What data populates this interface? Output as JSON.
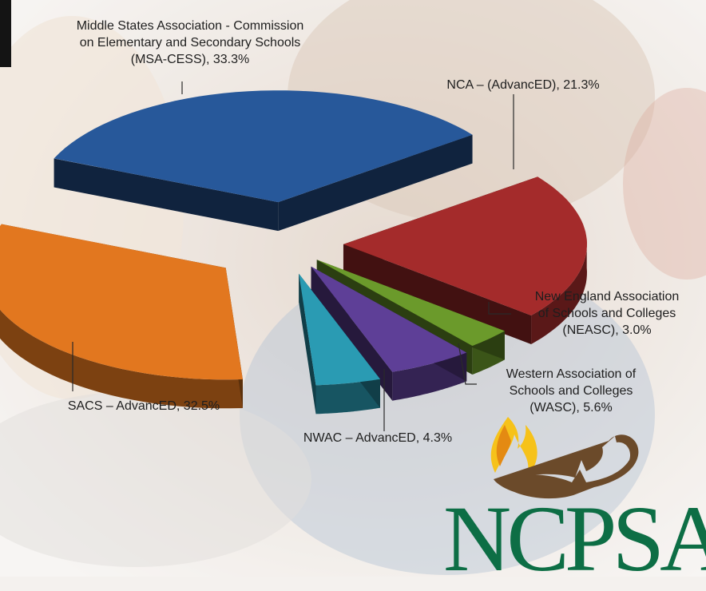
{
  "chart_data": {
    "type": "pie",
    "style": "3d-exploded",
    "slices": [
      {
        "name": "Middle States Association - Commission on Elementary and Secondary Schools (MSA-CESS)",
        "value": 33.3,
        "color": "#27589a",
        "label_lines": [
          "Middle States Association - Commission",
          "on Elementary and Secondary Schools",
          "(MSA-CESS), 33.3%"
        ]
      },
      {
        "name": "NCA – (AdvancED)",
        "value": 21.3,
        "color": "#a42b2b",
        "label_lines": [
          "NCA – (AdvancED), 21.3%"
        ]
      },
      {
        "name": "New England Association of Schools and Colleges (NEASC)",
        "value": 3.0,
        "color": "#6b9a2b",
        "label_lines": [
          "New England Association",
          "of Schools and Colleges",
          "(NEASC), 3.0%"
        ]
      },
      {
        "name": "Western Association of Schools and Colleges (WASC)",
        "value": 5.6,
        "color": "#5e3f97",
        "label_lines": [
          "Western Association of",
          "Schools and Colleges",
          "(WASC), 5.6%"
        ]
      },
      {
        "name": "NWAC – AdvancED",
        "value": 4.3,
        "color": "#2a9bb3",
        "label_lines": [
          "NWAC – AdvancED, 4.3%"
        ]
      },
      {
        "name": "SACS – AdvancED",
        "value": 32.5,
        "color": "#e2771f",
        "label_lines": [
          "SACS – AdvancED, 32.5%"
        ]
      }
    ]
  },
  "logo": {
    "text": "NCPSA",
    "flame_colors": [
      "#f6c21a",
      "#e48a12"
    ],
    "lamp_color": "#6b4a2a",
    "text_color": "#0d6e45"
  }
}
